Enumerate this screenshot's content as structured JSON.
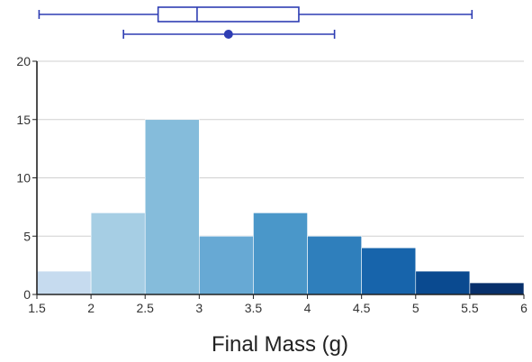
{
  "chart_data": {
    "type": "bar",
    "subtype": "histogram",
    "xlabel": "Final Mass (g)",
    "ylabel": "",
    "bins": [
      {
        "start": 1.5,
        "end": 2.0,
        "count": 2
      },
      {
        "start": 2.0,
        "end": 2.5,
        "count": 7
      },
      {
        "start": 2.5,
        "end": 3.0,
        "count": 15
      },
      {
        "start": 3.0,
        "end": 3.5,
        "count": 5
      },
      {
        "start": 3.5,
        "end": 4.0,
        "count": 7
      },
      {
        "start": 4.0,
        "end": 4.5,
        "count": 5
      },
      {
        "start": 4.5,
        "end": 5.0,
        "count": 4
      },
      {
        "start": 5.0,
        "end": 5.5,
        "count": 2
      },
      {
        "start": 5.5,
        "end": 6.0,
        "count": 1
      }
    ],
    "xlim": [
      1.5,
      6
    ],
    "ylim": [
      0,
      20
    ],
    "x_ticks": [
      "1.5",
      "2",
      "2.5",
      "3",
      "3.5",
      "4",
      "4.5",
      "5",
      "5.5",
      "6"
    ],
    "y_ticks": [
      "0",
      "5",
      "10",
      "15",
      "20"
    ],
    "grid": "horizontal",
    "bar_colors": [
      "#c6dbef",
      "#a6cee4",
      "#85bcdb",
      "#67a9d4",
      "#4a97c9",
      "#2f7fbc",
      "#1764ab",
      "#0a4a90",
      "#08306b"
    ],
    "boxplot": {
      "min": 1.52,
      "q1": 2.62,
      "median": 2.98,
      "q3": 3.92,
      "max": 5.52,
      "color": "#2e3db3"
    },
    "mean_ci": {
      "mean": 3.27,
      "lower": 2.3,
      "upper": 4.25,
      "color": "#2e3db3"
    },
    "colors": {
      "axis": "#222222",
      "grid": "#d0d0d0",
      "summary": "#2e3db3"
    }
  }
}
